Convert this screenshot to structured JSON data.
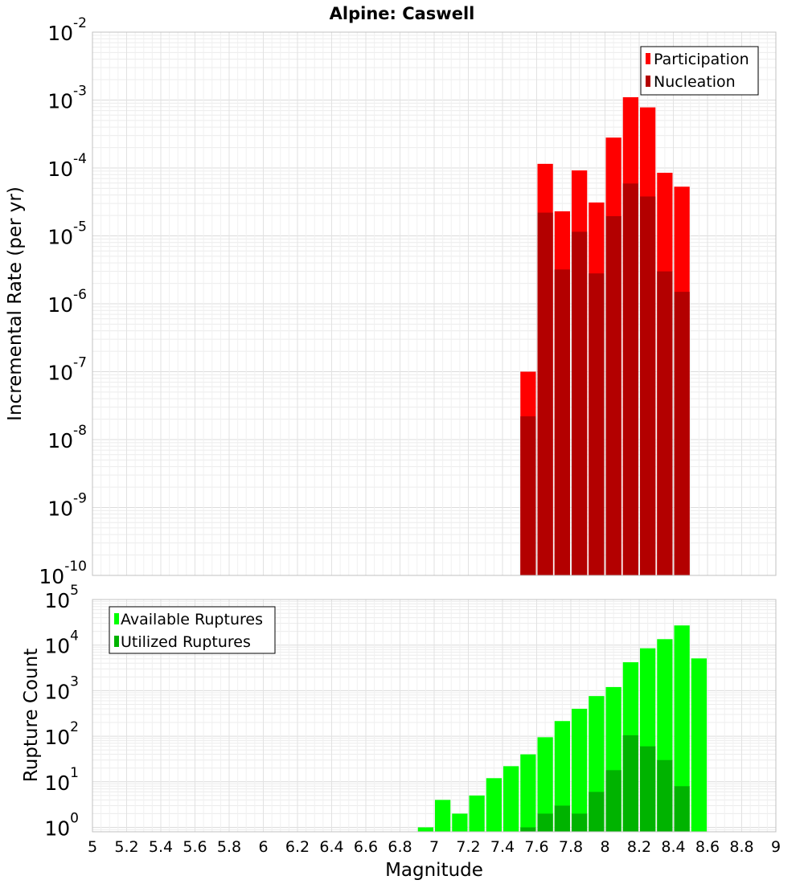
{
  "chart_data": [
    {
      "type": "bar",
      "title": "Alpine: Caswell",
      "xlabel": "",
      "ylabel": "Incremental Rate (per yr)",
      "yscale": "log",
      "ylim": [
        1e-10,
        0.01
      ],
      "xlim": [
        5,
        9
      ],
      "bin_width": 0.1,
      "legend_position": "top-right",
      "grid": true,
      "y_tick_exponents": [
        -10,
        -9,
        -8,
        -7,
        -6,
        -5,
        -4,
        -3,
        -2
      ],
      "series": [
        {
          "name": "Participation",
          "color": "#ff0000",
          "x": [
            7.55,
            7.65,
            7.75,
            7.85,
            7.95,
            8.05,
            8.15,
            8.25,
            8.35,
            8.45
          ],
          "values": [
            1e-07,
            0.000115,
            2.3e-05,
            9.2e-05,
            3.1e-05,
            0.00028,
            0.0011,
            0.00078,
            8.5e-05,
            5.3e-05
          ]
        },
        {
          "name": "Nucleation",
          "color": "#b30000",
          "x": [
            7.55,
            7.65,
            7.75,
            7.85,
            7.95,
            8.05,
            8.15,
            8.25,
            8.35,
            8.45
          ],
          "values": [
            2.2e-08,
            2.2e-05,
            3.2e-06,
            1.15e-05,
            2.8e-06,
            1.95e-05,
            5.9e-05,
            3.8e-05,
            3e-06,
            1.5e-06
          ]
        }
      ]
    },
    {
      "type": "bar",
      "title": "",
      "xlabel": "Magnitude",
      "ylabel": "Rupture Count",
      "yscale": "log",
      "ylim": [
        0.8,
        100000
      ],
      "xlim": [
        5,
        9
      ],
      "bin_width": 0.1,
      "legend_position": "top-left",
      "grid": true,
      "y_tick_exponents": [
        0,
        1,
        2,
        3,
        4,
        5
      ],
      "x_ticks": [
        "5",
        "5.2",
        "5.4",
        "5.6",
        "5.8",
        "6",
        "6.2",
        "6.4",
        "6.6",
        "6.8",
        "7",
        "7.2",
        "7.4",
        "7.6",
        "7.8",
        "8",
        "8.2",
        "8.4",
        "8.6",
        "8.8",
        "9"
      ],
      "series": [
        {
          "name": "Available Ruptures",
          "color": "#00ff00",
          "x": [
            6.95,
            7.05,
            7.15,
            7.25,
            7.35,
            7.45,
            7.55,
            7.65,
            7.75,
            7.85,
            7.95,
            8.05,
            8.15,
            8.25,
            8.35,
            8.45,
            8.55
          ],
          "values": [
            1,
            4,
            2,
            5,
            12,
            22,
            40,
            95,
            215,
            400,
            760,
            1200,
            4200,
            8500,
            13500,
            27000,
            5100
          ]
        },
        {
          "name": "Utilized Ruptures",
          "color": "#00b300",
          "x": [
            7.55,
            7.65,
            7.75,
            7.85,
            7.95,
            8.05,
            8.15,
            8.25,
            8.35,
            8.45
          ],
          "values": [
            1,
            2,
            3,
            2,
            6,
            18,
            105,
            60,
            30,
            8
          ]
        }
      ]
    }
  ]
}
